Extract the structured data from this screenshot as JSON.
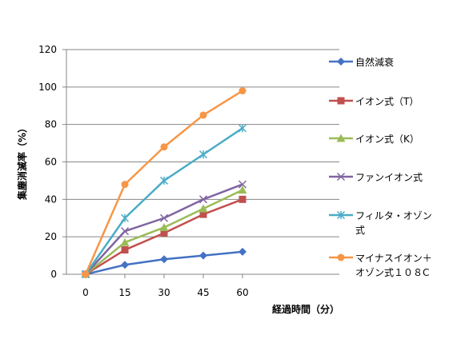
{
  "chart_data": {
    "type": "line",
    "title": "",
    "xlabel": "経過時間（分）",
    "ylabel": "集塵消滅率（%）",
    "x": [
      0,
      15,
      30,
      45,
      60
    ],
    "xlim": [
      0,
      60
    ],
    "ylim": [
      0,
      120
    ],
    "yticks": [
      0,
      20,
      40,
      60,
      80,
      100,
      120
    ],
    "grid": "horizontal",
    "legend": "right",
    "series": [
      {
        "name": "自然減衰",
        "name_lines": [
          "自然減衰"
        ],
        "values": [
          0,
          5,
          8,
          10,
          12
        ],
        "color": "#4472C4",
        "marker": "diamond"
      },
      {
        "name": "イオン式（T）",
        "name_lines": [
          "イオン式（T）"
        ],
        "values": [
          0,
          13,
          22,
          32,
          40
        ],
        "color": "#C0504D",
        "marker": "square"
      },
      {
        "name": "イオン式（K）",
        "name_lines": [
          "イオン式（K）"
        ],
        "values": [
          0,
          17,
          25,
          35,
          45
        ],
        "color": "#9BBB59",
        "marker": "triangle"
      },
      {
        "name": "ファンイオン式",
        "name_lines": [
          "ファンイオン式"
        ],
        "values": [
          0,
          23,
          30,
          40,
          48
        ],
        "color": "#8064A2",
        "marker": "x"
      },
      {
        "name": "フィルタ・オゾン式",
        "name_lines": [
          "フィルタ・オゾン",
          "式"
        ],
        "values": [
          0,
          30,
          50,
          64,
          78
        ],
        "color": "#4BACC6",
        "marker": "star"
      },
      {
        "name": "マイナスイオン＋オゾン式１０８C",
        "name_lines": [
          "マイナスイオン＋",
          "オゾン式１０８C"
        ],
        "values": [
          0,
          48,
          68,
          85,
          98
        ],
        "color": "#F79646",
        "marker": "circle"
      }
    ]
  }
}
